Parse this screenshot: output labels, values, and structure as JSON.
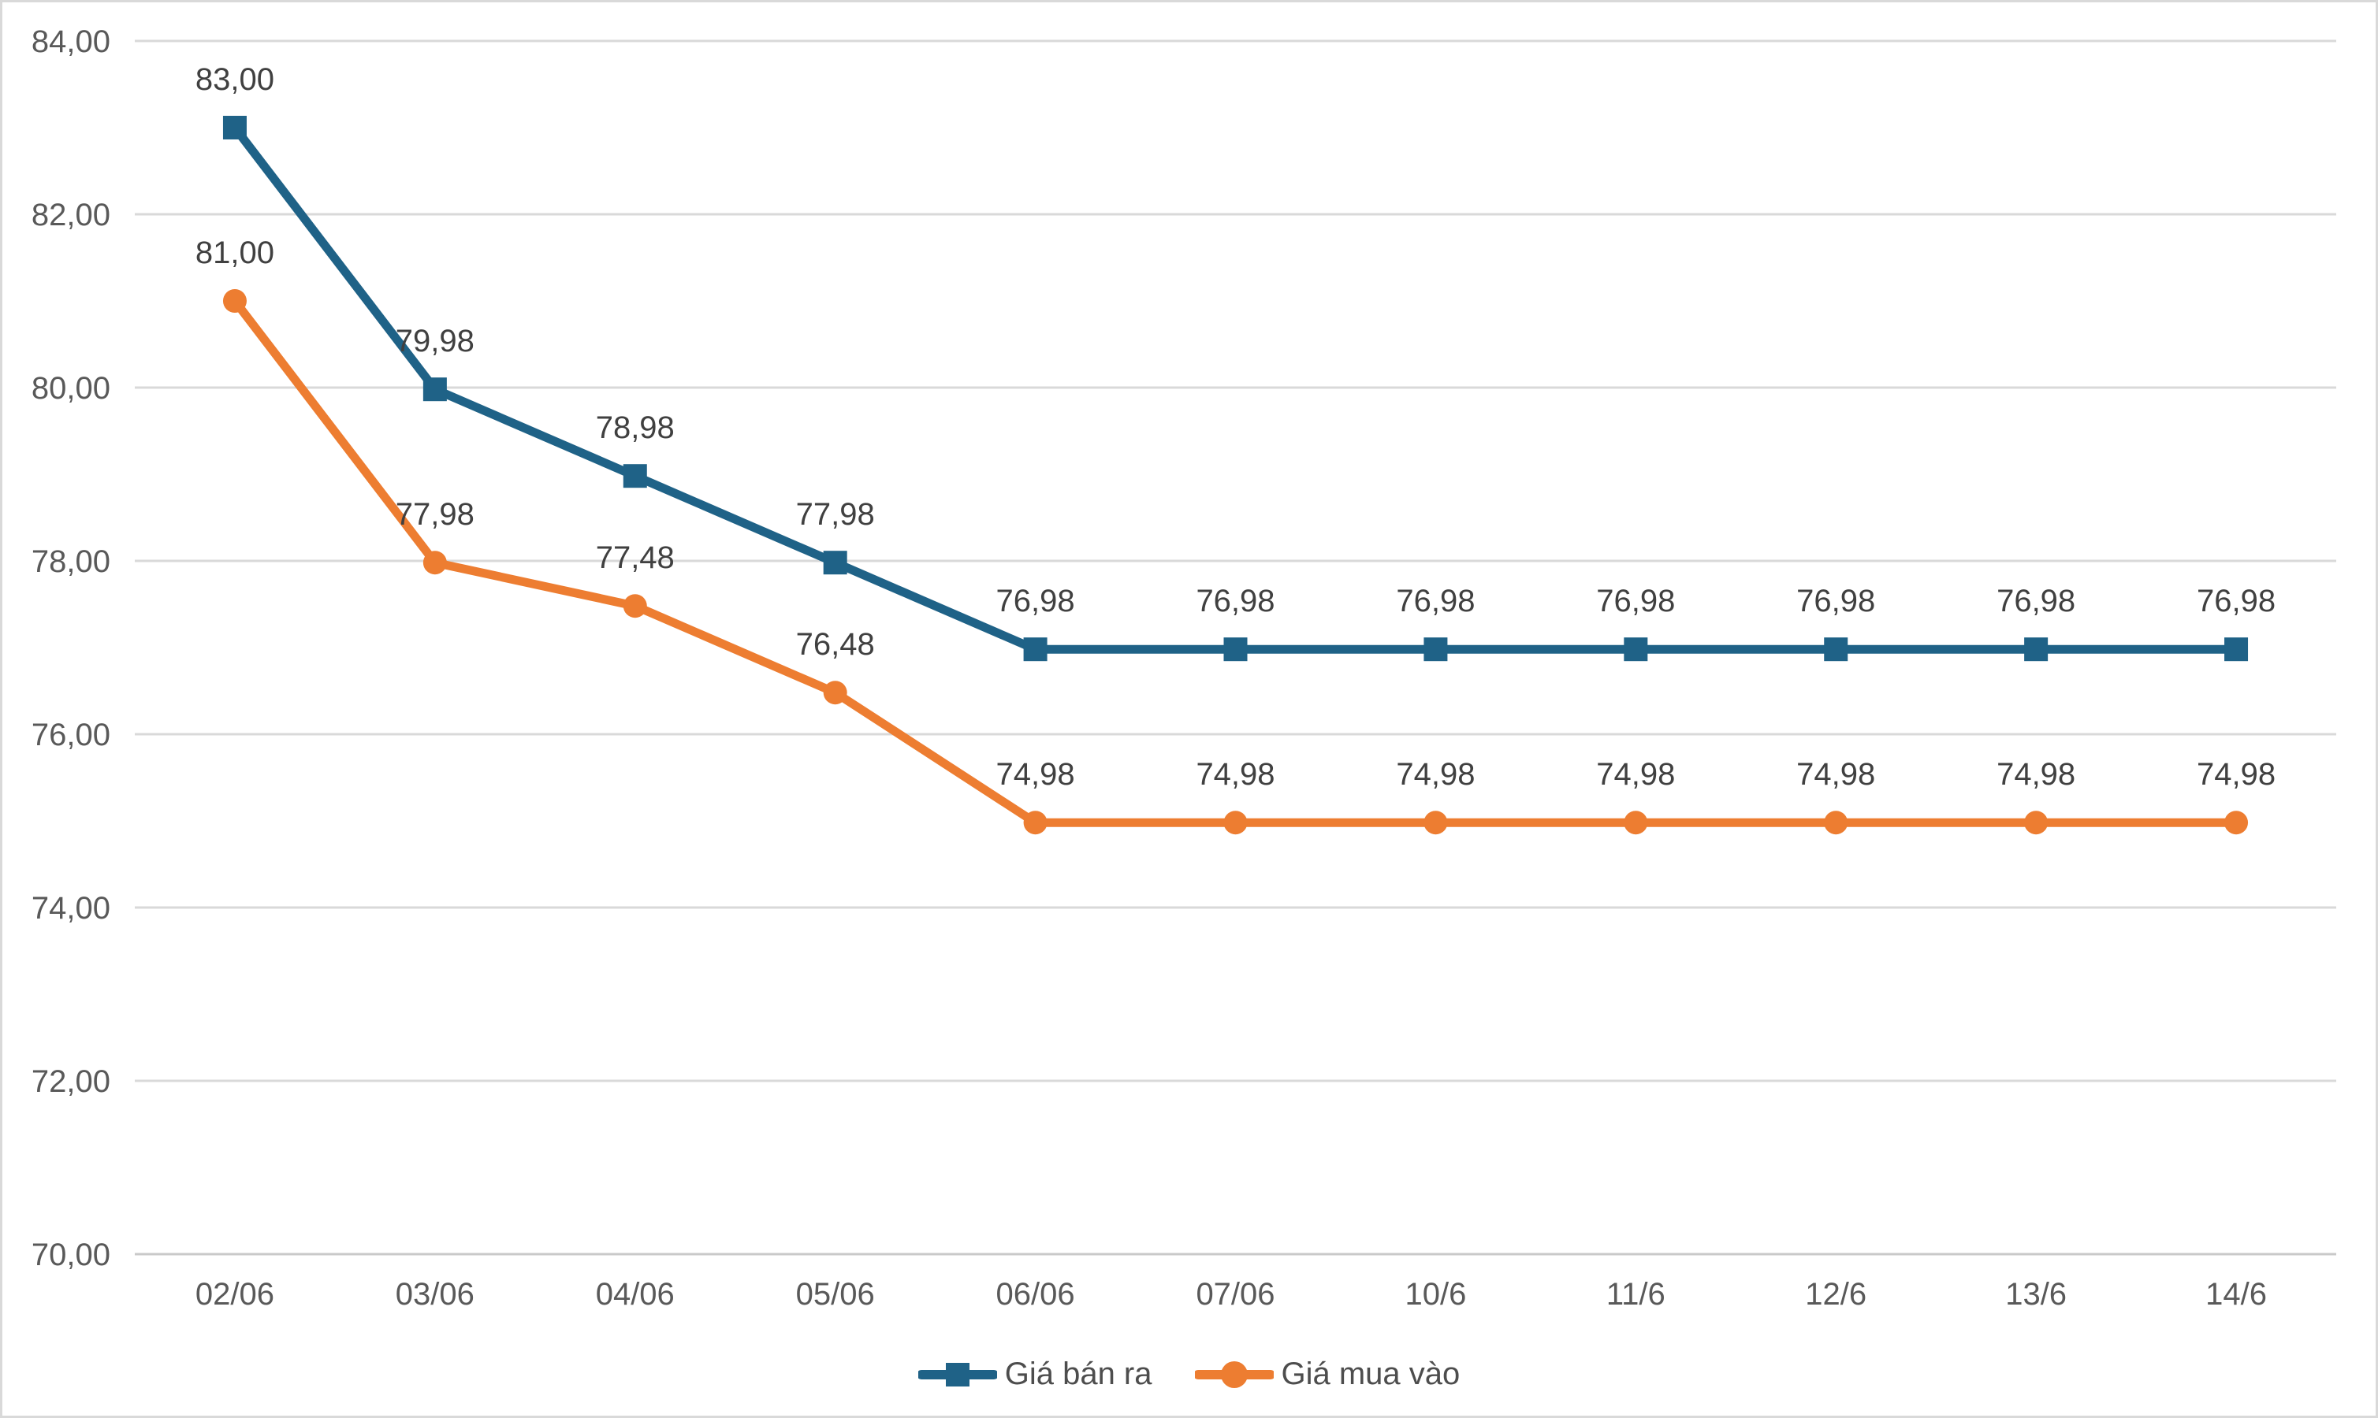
{
  "chart": {
    "background_color": "#FFFFFF",
    "border_color": "#D9D9D9",
    "grid_color": "#D9D9D9",
    "axis_line_color": "#C9C9C9",
    "tick_label_color": "#595959",
    "data_label_color": "#404040",
    "legend_text_color": "#4D4D4D"
  },
  "chart_data": {
    "type": "line",
    "title": "",
    "xlabel": "",
    "ylabel": "",
    "grid": true,
    "legend_position": "bottom",
    "decimal_separator": ",",
    "categories": [
      "02/06",
      "03/06",
      "04/06",
      "05/06",
      "06/06",
      "07/06",
      "10/6",
      "11/6",
      "12/6",
      "13/6",
      "14/6"
    ],
    "y_axis": {
      "min": 70,
      "max": 84,
      "step": 2,
      "tick_labels": [
        "70,00",
        "72,00",
        "74,00",
        "76,00",
        "78,00",
        "80,00",
        "82,00",
        "84,00"
      ]
    },
    "series": [
      {
        "name": "Giá bán ra",
        "color": "#1F6287",
        "marker": "square",
        "values": [
          83.0,
          79.98,
          78.98,
          77.98,
          76.98,
          76.98,
          76.98,
          76.98,
          76.98,
          76.98,
          76.98
        ],
        "data_labels": [
          "83,00",
          "79,98",
          "78,98",
          "77,98",
          "76,98",
          "76,98",
          "76,98",
          "76,98",
          "76,98",
          "76,98",
          "76,98"
        ]
      },
      {
        "name": "Giá mua vào",
        "color": "#ED7D31",
        "marker": "circle",
        "values": [
          81.0,
          77.98,
          77.48,
          76.48,
          74.98,
          74.98,
          74.98,
          74.98,
          74.98,
          74.98,
          74.98
        ],
        "data_labels": [
          "81,00",
          "77,98",
          "77,48",
          "76,48",
          "74,98",
          "74,98",
          "74,98",
          "74,98",
          "74,98",
          "74,98",
          "74,98"
        ]
      }
    ]
  }
}
